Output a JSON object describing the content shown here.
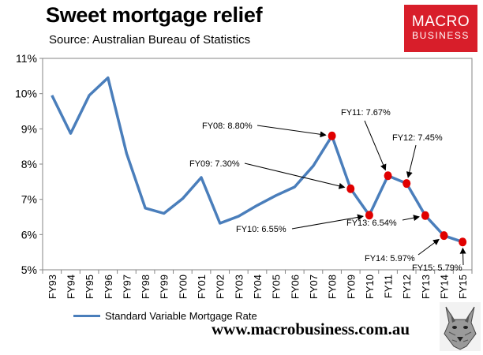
{
  "header": {
    "title": "Sweet mortgage relief",
    "source": "Source: Australian Bureau of Statistics"
  },
  "logo": {
    "line1": "MACRO",
    "line2": "BUSINESS"
  },
  "footer": {
    "website": "www.macrobusiness.com.au"
  },
  "colors": {
    "line": "#4a7ebb",
    "marker": "#e00000",
    "logo_bg": "#d81e2a"
  },
  "chart_data": {
    "type": "line",
    "title": "Sweet mortgage relief",
    "categories": [
      "FY93",
      "FY94",
      "FY95",
      "FY96",
      "FY97",
      "FY98",
      "FY99",
      "FY00",
      "FY01",
      "FY02",
      "FY03",
      "FY04",
      "FY05",
      "FY06",
      "FY07",
      "FY08",
      "FY09",
      "FY10",
      "FY11",
      "FY12",
      "FY13",
      "FY14",
      "FY15"
    ],
    "series": [
      {
        "name": "Standard Variable Mortgage Rate",
        "values": [
          9.95,
          8.87,
          9.95,
          10.45,
          8.3,
          6.75,
          6.6,
          7.02,
          7.62,
          6.32,
          6.52,
          6.83,
          7.11,
          7.35,
          7.95,
          8.8,
          7.3,
          6.55,
          7.67,
          7.45,
          6.54,
          5.97,
          5.79
        ]
      }
    ],
    "ylim": [
      5,
      11
    ],
    "yticks": [
      "5%",
      "6%",
      "7%",
      "8%",
      "9%",
      "10%",
      "11%"
    ],
    "ylabel": "",
    "xlabel": "",
    "grid": false,
    "legend": "bottom",
    "annotations": [
      {
        "category": "FY08",
        "value": 8.8,
        "label": "FY08: 8.80%"
      },
      {
        "category": "FY09",
        "value": 7.3,
        "label": "FY09: 7.30%"
      },
      {
        "category": "FY10",
        "value": 6.55,
        "label": "FY10: 6.55%"
      },
      {
        "category": "FY11",
        "value": 7.67,
        "label": "FY11: 7.67%"
      },
      {
        "category": "FY12",
        "value": 7.45,
        "label": "FY12: 7.45%"
      },
      {
        "category": "FY13",
        "value": 6.54,
        "label": "FY13: 6.54%"
      },
      {
        "category": "FY14",
        "value": 5.97,
        "label": "FY14: 5.97%"
      },
      {
        "category": "FY15",
        "value": 5.79,
        "label": "FY15: 5.79%"
      }
    ]
  }
}
